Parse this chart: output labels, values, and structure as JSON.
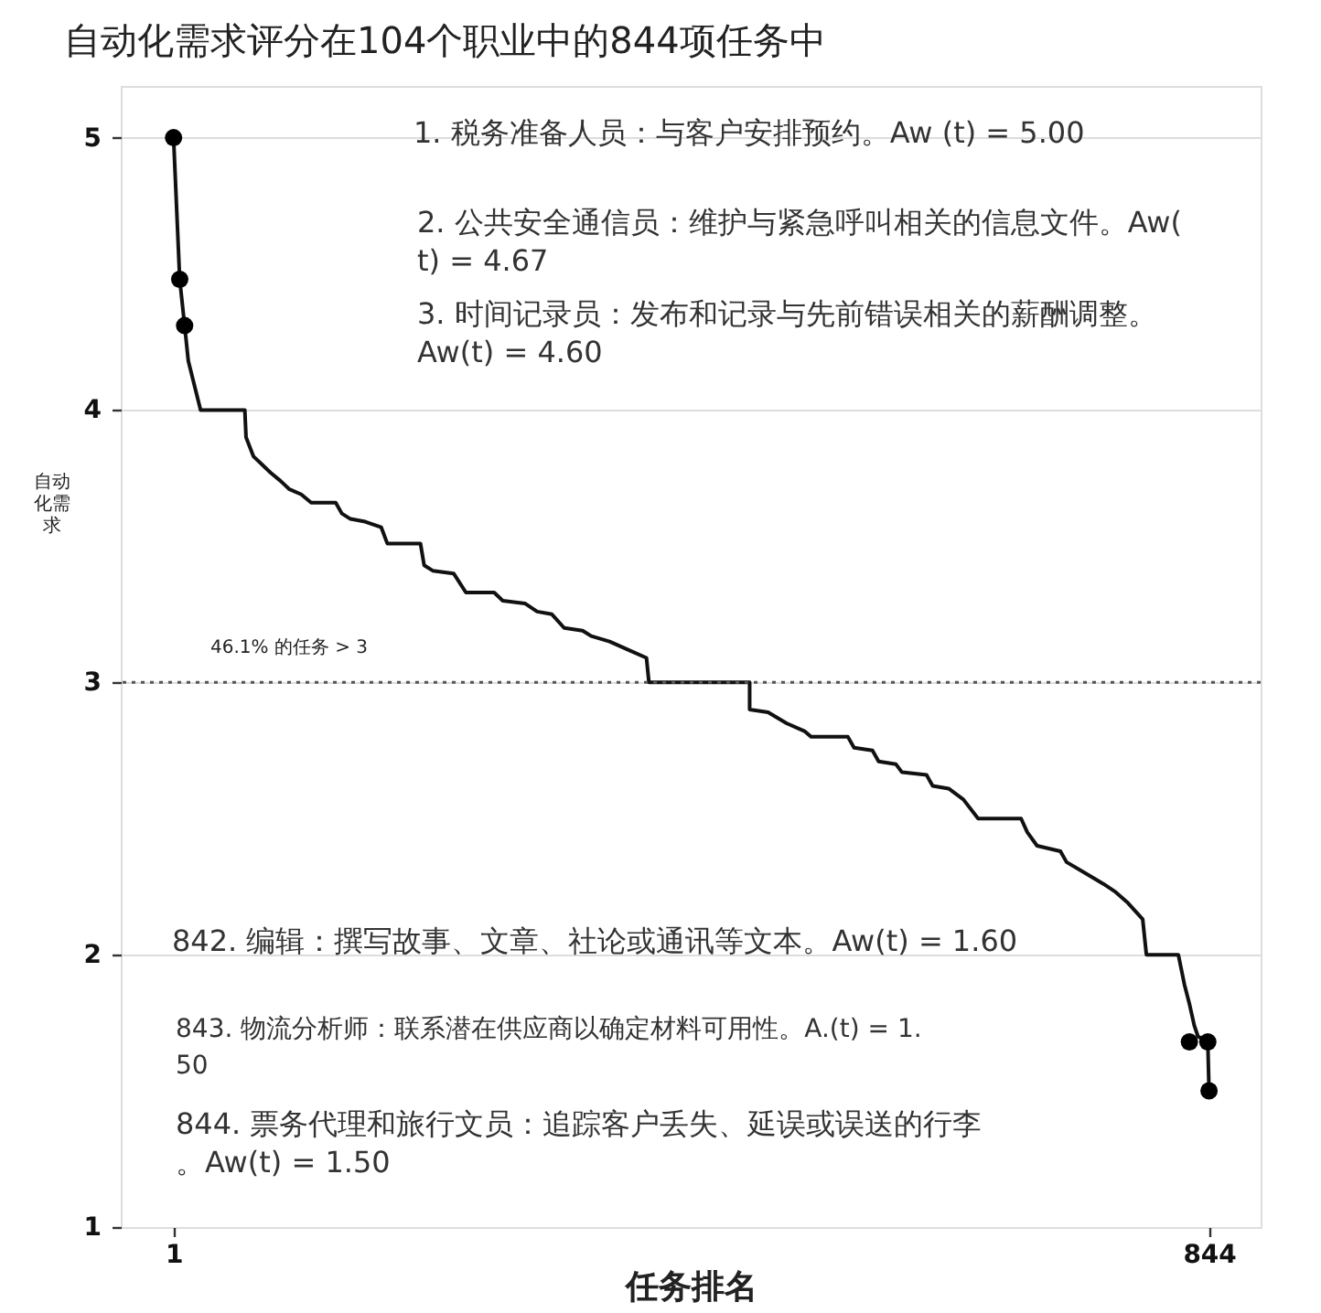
{
  "chart_data": {
    "type": "line",
    "title": "自动化需求评分在104个职业中的844项任务中",
    "xlabel": "任务排名",
    "ylabel": "自动化需求",
    "xlim": [
      -42,
      886
    ],
    "ylim": [
      1,
      5.19
    ],
    "xticks": [
      1,
      844
    ],
    "yticks": [
      1,
      2,
      3,
      4,
      5
    ],
    "grid": "y",
    "series": [
      {
        "color": "#111111",
        "x": [
          1,
          6,
          10,
          13,
          23,
          59,
          60,
          66,
          73,
          80,
          88,
          95,
          105,
          113,
          133,
          138,
          145,
          157,
          170,
          175,
          202,
          205,
          212,
          229,
          239,
          262,
          269,
          287,
          297,
          309,
          319,
          334,
          341,
          356,
          371,
          386,
          388,
          470,
          470,
          485,
          500,
          515,
          520,
          550,
          555,
          570,
          575,
          589,
          594,
          614,
          619,
          632,
          644,
          656,
          691,
          696,
          704,
          723,
          728,
          743,
          758,
          768,
          778,
          790,
          793,
          819,
          824,
          828,
          832,
          835,
          843,
          844
        ],
        "values": [
          5.0,
          4.48,
          4.31,
          4.18,
          4.0,
          4.0,
          3.9,
          3.83,
          3.8,
          3.77,
          3.74,
          3.71,
          3.69,
          3.66,
          3.66,
          3.62,
          3.6,
          3.59,
          3.57,
          3.51,
          3.51,
          3.43,
          3.41,
          3.4,
          3.33,
          3.33,
          3.3,
          3.29,
          3.26,
          3.25,
          3.2,
          3.19,
          3.17,
          3.15,
          3.12,
          3.09,
          3.0,
          3.0,
          2.9,
          2.89,
          2.85,
          2.82,
          2.8,
          2.8,
          2.76,
          2.75,
          2.71,
          2.7,
          2.67,
          2.66,
          2.62,
          2.61,
          2.57,
          2.5,
          2.5,
          2.45,
          2.4,
          2.38,
          2.34,
          2.3,
          2.26,
          2.23,
          2.19,
          2.13,
          2.0,
          2.0,
          1.89,
          1.82,
          1.74,
          1.7,
          1.68,
          1.5
        ]
      },
      {
        "type": "scatter",
        "color": "#000000",
        "marker": "circle",
        "x": [
          1,
          6,
          10,
          828,
          843,
          844
        ],
        "values": [
          5.0,
          4.48,
          4.31,
          1.68,
          1.68,
          1.5
        ]
      }
    ],
    "ref_lines": [
      {
        "axis": "y",
        "value": 3,
        "label": "46.1% 的任务 > 3",
        "line_style": "dotted",
        "color": "#555555"
      }
    ],
    "annotations": [
      "1. 税务准备人员：与客户安排预约。Aw (t) = 5.00",
      "2. 公共安全通信员：维护与紧急呼叫相关的信息文件。Aw(t) = 4.67",
      "3. 时间记录员：发布和记录与先前错误相关的薪酬调整。Aw(t) = 4.60",
      "842. 编辑：撰写故事、文章、社论或通讯等文本。Aw(t) = 1.60",
      "843. 物流分析师：联系潜在供应商以确定材料可用性。A.(t) = 1.50",
      "844. 票务代理和旅行文员：追踪客户丢失、延误或误送的行李。Aw(t) = 1.50"
    ]
  }
}
